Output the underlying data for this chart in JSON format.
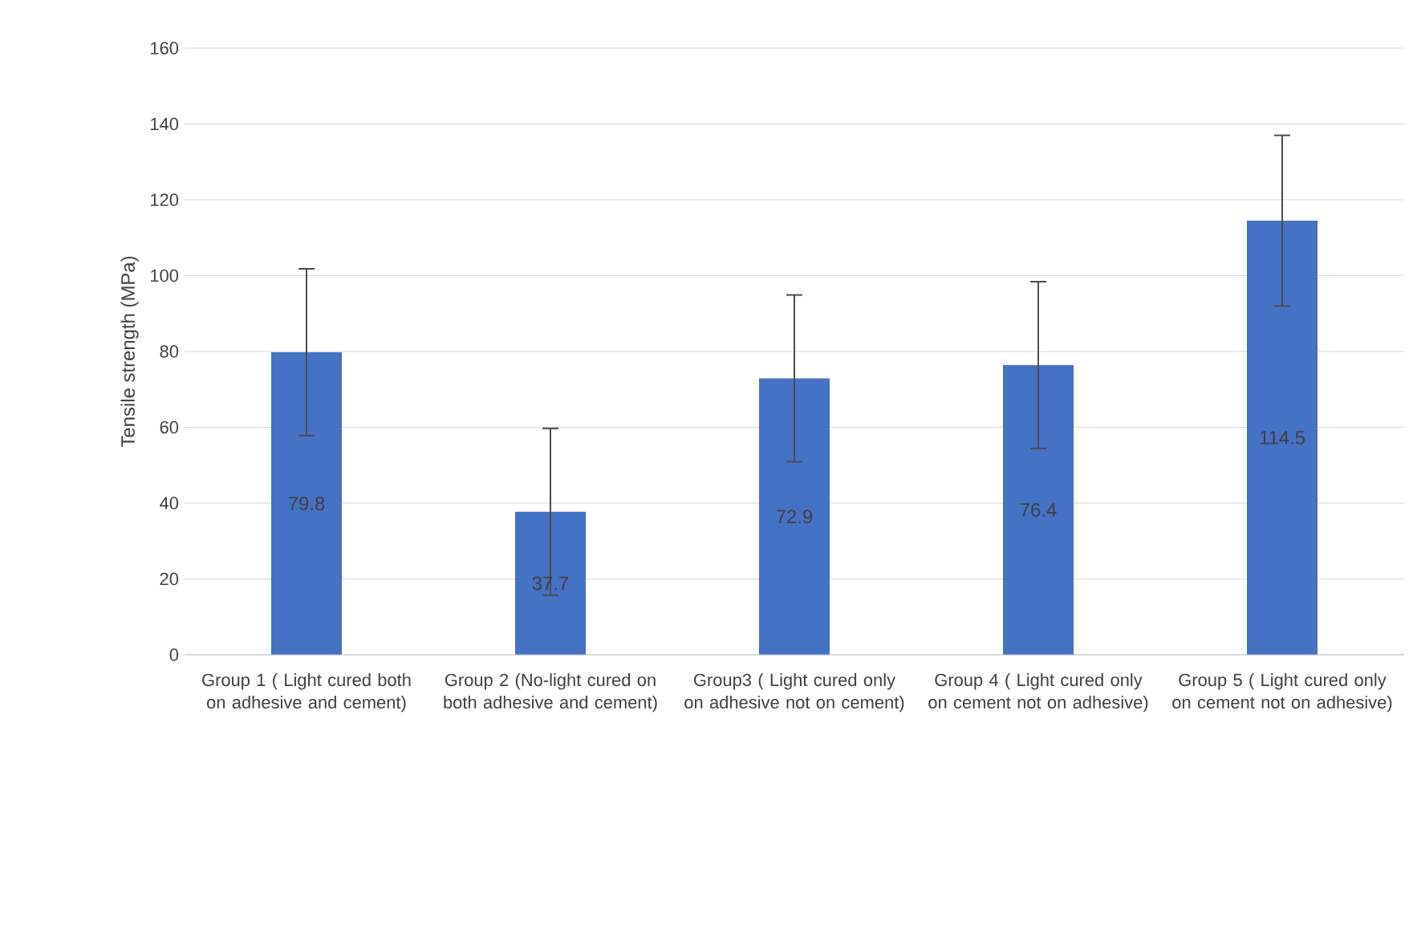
{
  "chart_data": {
    "type": "bar",
    "ylabel": "Tensile strength (MPa)",
    "categories": [
      "Group 1 ( Light cured both on adhesive and cement)",
      "Group 2 (No-light cured on both adhesive and cement)",
      "Group3 ( Light cured only on adhesive not on cement)",
      "Group 4 ( Light cured only on cement not on adhesive)",
      "Group 5 ( Light cured only on cement not on adhesive)"
    ],
    "values": [
      79.8,
      37.7,
      72.9,
      76.4,
      114.5
    ],
    "errors": [
      22,
      22,
      22,
      22,
      22.5
    ],
    "color": "#4472c4",
    "ylim": [
      0,
      160
    ],
    "yticks": [
      0,
      20,
      40,
      60,
      80,
      100,
      120,
      140,
      160
    ],
    "grid": "y",
    "data_labels": true
  }
}
